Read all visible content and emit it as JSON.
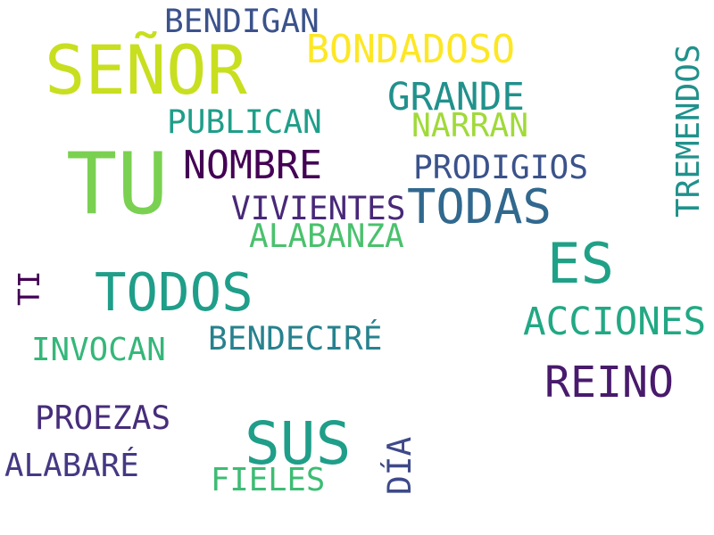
{
  "words": [
    {
      "id": "senor",
      "text": "SEÑOR",
      "color": "#c8df1f"
    },
    {
      "id": "tu",
      "text": "TU",
      "color": "#7ad151"
    },
    {
      "id": "bendigan",
      "text": "BENDIGAN",
      "color": "#3b528b"
    },
    {
      "id": "bondadoso",
      "text": "BONDADOSO",
      "color": "#fde725"
    },
    {
      "id": "grande",
      "text": "GRANDE",
      "color": "#21918c"
    },
    {
      "id": "narran",
      "text": "NARRAN",
      "color": "#a0da39"
    },
    {
      "id": "publican",
      "text": "PUBLICAN",
      "color": "#1f9e89"
    },
    {
      "id": "nombre",
      "text": "NOMBRE",
      "color": "#440154"
    },
    {
      "id": "prodigios",
      "text": "PRODIGIOS",
      "color": "#3b528b"
    },
    {
      "id": "tremendos",
      "text": "TREMENDOS",
      "color": "#21918c"
    },
    {
      "id": "todas",
      "text": "TODAS",
      "color": "#31688e"
    },
    {
      "id": "vivientes",
      "text": "VIVIENTES",
      "color": "#482878"
    },
    {
      "id": "alabanza",
      "text": "ALABANZA",
      "color": "#4ac16d"
    },
    {
      "id": "es",
      "text": "ES",
      "color": "#1fa187"
    },
    {
      "id": "todos",
      "text": "TODOS",
      "color": "#1f9e89"
    },
    {
      "id": "ti",
      "text": "TI",
      "color": "#440154"
    },
    {
      "id": "acciones",
      "text": "ACCIONES",
      "color": "#22a884"
    },
    {
      "id": "bendecire",
      "text": "BENDECIRÉ",
      "color": "#26828e"
    },
    {
      "id": "invocan",
      "text": "INVOCAN",
      "color": "#35b779"
    },
    {
      "id": "reino",
      "text": "REINO",
      "color": "#481a6c"
    },
    {
      "id": "proezas",
      "text": "PROEZAS",
      "color": "#472d7b"
    },
    {
      "id": "sus",
      "text": "SUS",
      "color": "#1f9e89"
    },
    {
      "id": "alabare",
      "text": "ALABARÉ",
      "color": "#443983"
    },
    {
      "id": "fieles",
      "text": "FIELES",
      "color": "#3dbc74"
    },
    {
      "id": "dia",
      "text": "DÍA",
      "color": "#3e4989"
    }
  ]
}
